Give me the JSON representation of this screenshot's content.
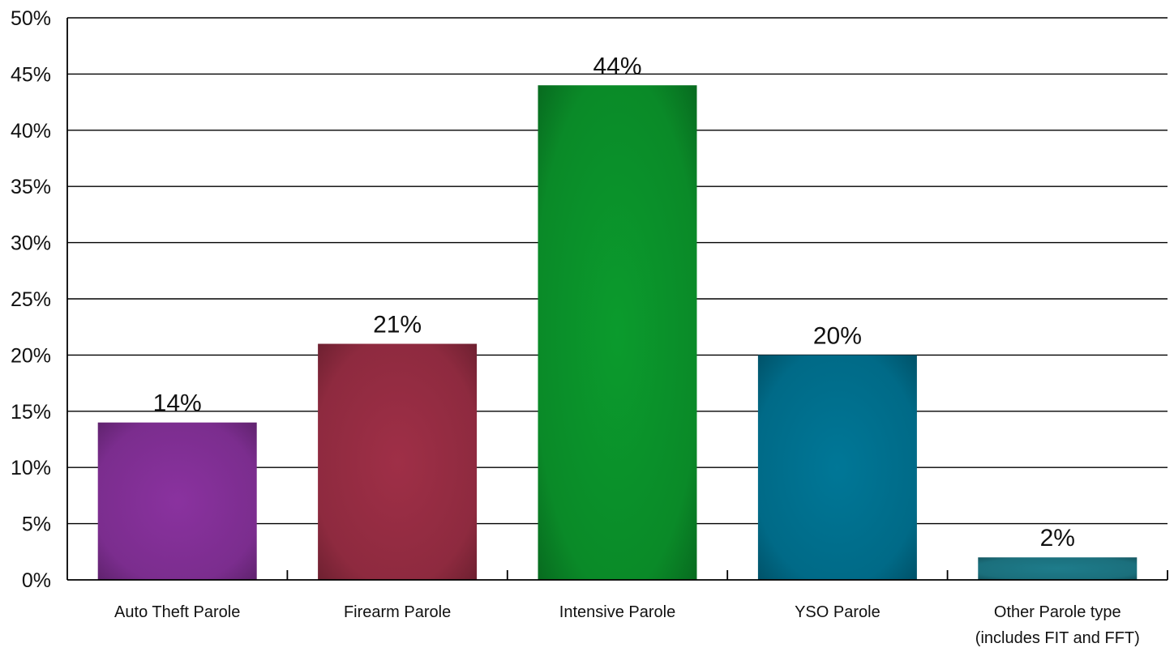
{
  "chart_data": {
    "type": "bar",
    "title": "",
    "xlabel": "",
    "ylabel": "",
    "categories": [
      [
        "Auto Theft Parole"
      ],
      [
        "Firearm Parole"
      ],
      [
        "Intensive Parole"
      ],
      [
        "YSO Parole"
      ],
      [
        "Other Parole type",
        "(includes FIT and FFT)"
      ]
    ],
    "values": [
      14,
      21,
      44,
      20,
      2
    ],
    "data_labels": [
      "14%",
      "21%",
      "44%",
      "20%",
      "2%"
    ],
    "ylim": [
      0,
      50
    ],
    "yticks": [
      0,
      5,
      10,
      15,
      20,
      25,
      30,
      35,
      40,
      45,
      50
    ],
    "ytick_labels": [
      "0%",
      "5%",
      "10%",
      "15%",
      "20%",
      "25%",
      "30%",
      "35%",
      "40%",
      "45%",
      "50%"
    ],
    "grid": true,
    "legend": "none",
    "colors": [
      "#7b2d8e",
      "#8e2a3f",
      "#0a8a28",
      "#006a87",
      "#1b6f7c"
    ]
  }
}
